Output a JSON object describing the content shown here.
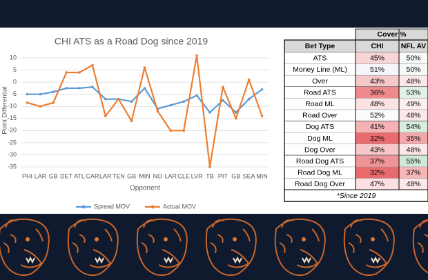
{
  "chart_data": {
    "type": "line",
    "title": "CHI ATS as a Road Dog since 2019",
    "x_label": "Opponent",
    "y_label": "Point Differential",
    "categories": [
      "PHI",
      "LAR",
      "GB",
      "DET",
      "ATL",
      "CAR",
      "LAR",
      "TEN",
      "GB",
      "MIN",
      "NO",
      "LAR",
      "CLE",
      "LVR",
      "TB",
      "PIT",
      "GB",
      "SEA",
      "MIN"
    ],
    "series": [
      {
        "name": "Spread MOV",
        "color": "#5b9bd5",
        "values": [
          -5,
          -5,
          -4,
          -2.5,
          -2.5,
          -2,
          -7,
          -7,
          -8,
          -2.5,
          -11,
          -9.5,
          -8,
          -5.5,
          -12.5,
          -7.5,
          -12.5,
          -7,
          -3
        ]
      },
      {
        "name": "Actual MOV",
        "color": "#ed7d31",
        "values": [
          -8.5,
          -10,
          -8.5,
          4,
          4,
          7,
          -14,
          -7,
          -16,
          6,
          -12,
          -20,
          -20,
          11,
          -35,
          -2,
          -15,
          1,
          -14
        ]
      }
    ],
    "ylim": [
      -35,
      10
    ],
    "yticks": [
      10,
      5,
      0,
      -5,
      -10,
      -15,
      -20,
      -25,
      -30,
      -35
    ],
    "grid": true,
    "legend": "bottom"
  },
  "table": {
    "group_header": "Cover %",
    "columns": [
      "Bet Type",
      "CHI",
      "NFL AV"
    ],
    "rows": [
      [
        "ATS",
        "45%",
        "50%"
      ],
      [
        "Money Line (ML)",
        "51%",
        "50%"
      ],
      [
        "Over",
        "43%",
        "48%"
      ],
      [
        "Road ATS",
        "36%",
        "53%"
      ],
      [
        "Road ML",
        "48%",
        "49%"
      ],
      [
        "Road Over",
        "52%",
        "48%"
      ],
      [
        "Dog ATS",
        "41%",
        "54%"
      ],
      [
        "Dog ML",
        "32%",
        "35%"
      ],
      [
        "Dog Over",
        "43%",
        "48%"
      ],
      [
        "Road Dog ATS",
        "37%",
        "55%"
      ],
      [
        "Road Dog ML",
        "32%",
        "37%"
      ],
      [
        "Road Dog Over",
        "47%",
        "48%"
      ]
    ],
    "cell_colors": [
      [
        "#f8d4d6",
        "#f7fbf8"
      ],
      [
        "#f4f6fb",
        "#f7fbf8"
      ],
      [
        "#f6c8ca",
        "#fde8e9"
      ],
      [
        "#ef8a8c",
        "#e1f1e5"
      ],
      [
        "#fbe3e4",
        "#fcefef"
      ],
      [
        "#fbfcfe",
        "#fde8e9"
      ],
      [
        "#f4b2b4",
        "#d7edde"
      ],
      [
        "#ea6b6e",
        "#f3a9ab"
      ],
      [
        "#f6c8ca",
        "#fde8e9"
      ],
      [
        "#f09597",
        "#cfe9d6"
      ],
      [
        "#ea6b6e",
        "#f5b6b8"
      ],
      [
        "#fbe0e1",
        "#fde8e9"
      ]
    ],
    "footnote": "*Since 2019"
  }
}
